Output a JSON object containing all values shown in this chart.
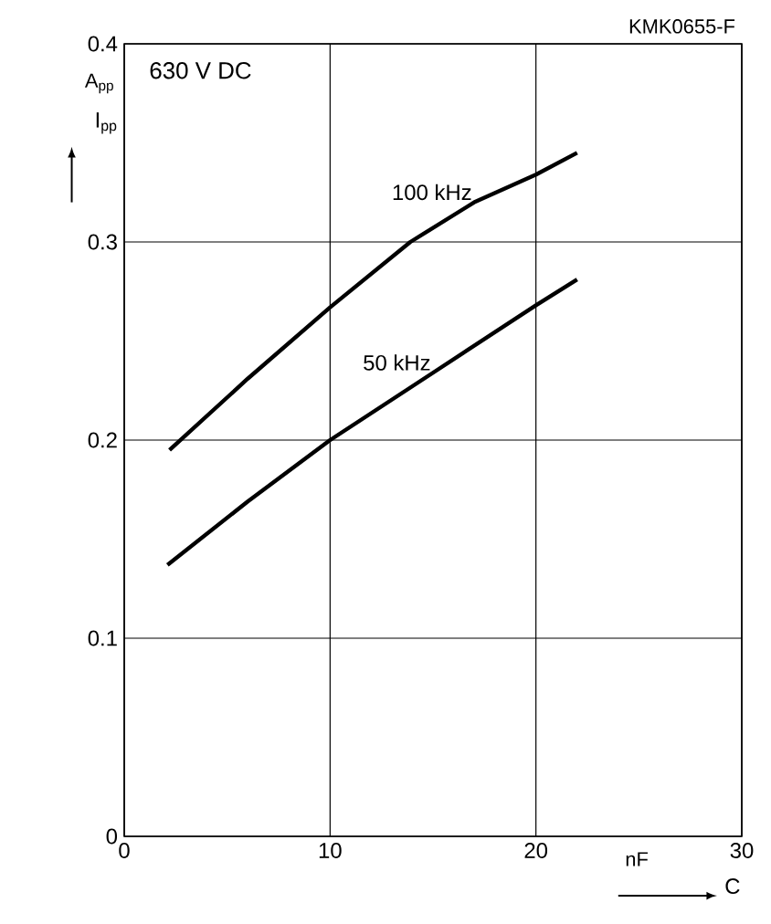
{
  "chart_data": {
    "type": "line",
    "title": "630 V DC",
    "xlabel": "C",
    "ylabel": "I$_{pp}$",
    "annotations": [
      "KMK0655-F",
      "A$_{pp}$",
      "nF"
    ],
    "xlim": [
      0,
      30
    ],
    "ylim": [
      0,
      0.4
    ],
    "xticks": [
      0,
      10,
      20,
      30
    ],
    "yticks": [
      0,
      0.1,
      0.2,
      0.3,
      0.4
    ],
    "grid": true,
    "legend": false,
    "line_style": "solid",
    "marker": "none",
    "series": [
      {
        "name": "100 kHz",
        "color": "#000000",
        "x": [
          2.2,
          6,
          10,
          13.9,
          17,
          20,
          22
        ],
        "values": [
          0.195,
          0.231,
          0.267,
          0.3,
          0.32,
          0.334,
          0.345
        ]
      },
      {
        "name": "50 kHz",
        "color": "#000000",
        "x": [
          2.1,
          6,
          10,
          15,
          20,
          22
        ],
        "values": [
          0.137,
          0.169,
          0.2,
          0.234,
          0.268,
          0.281
        ]
      }
    ]
  }
}
